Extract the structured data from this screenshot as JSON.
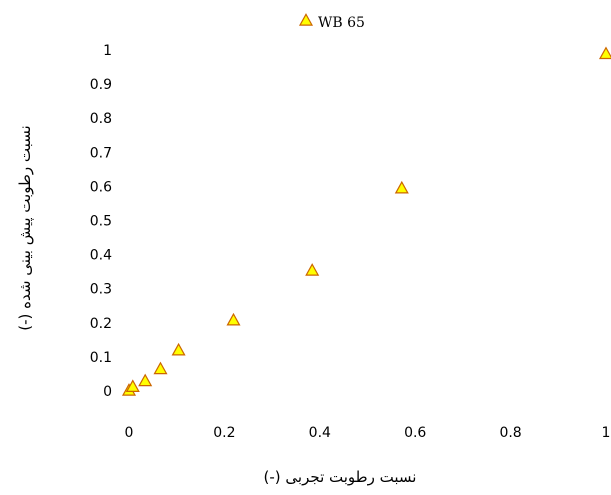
{
  "chart_data": {
    "type": "scatter",
    "title": "",
    "xlabel": "نسبت رطوبت تجربی (-)",
    "ylabel": "نسبت رطوبت پیش بینی شده (-)",
    "xlim": [
      0,
      1
    ],
    "ylim": [
      0,
      1
    ],
    "x_ticks": [
      "0",
      "0.2",
      "0.4",
      "0.6",
      "0.8",
      "1"
    ],
    "y_ticks": [
      "0",
      "0.1",
      "0.2",
      "0.3",
      "0.4",
      "0.5",
      "0.6",
      "0.7",
      "0.8",
      "0.9",
      "1"
    ],
    "grid": false,
    "legend_position": "top",
    "series": [
      {
        "name": "WB 65",
        "marker": "triangle",
        "color": "#FFFF00",
        "edge_color": "#CC6600",
        "points": [
          {
            "x": 0.0,
            "y": 0.0
          },
          {
            "x": 0.008,
            "y": 0.011
          },
          {
            "x": 0.034,
            "y": 0.028
          },
          {
            "x": 0.066,
            "y": 0.063
          },
          {
            "x": 0.104,
            "y": 0.118
          },
          {
            "x": 0.219,
            "y": 0.206
          },
          {
            "x": 0.384,
            "y": 0.352
          },
          {
            "x": 0.572,
            "y": 0.593
          },
          {
            "x": 1.0,
            "y": 0.987
          }
        ]
      }
    ]
  }
}
